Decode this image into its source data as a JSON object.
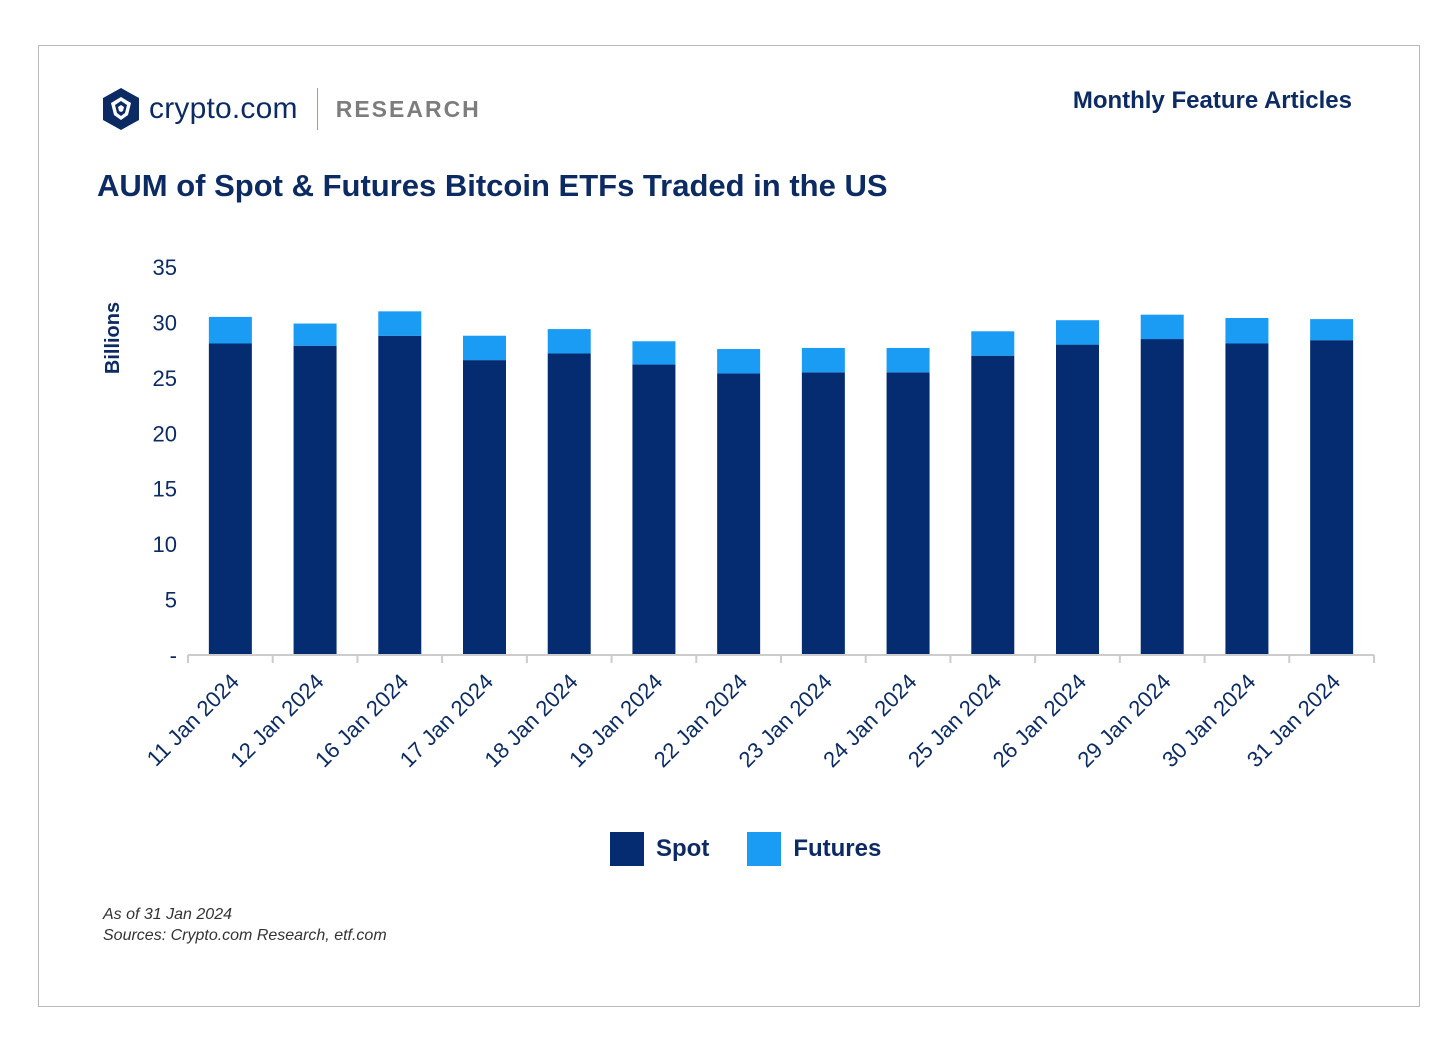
{
  "brand": {
    "name": "crypto.com",
    "section": "RESEARCH",
    "logo_icon": "crypto-com-lion-shield-icon"
  },
  "header": {
    "series": "Monthly Feature Articles"
  },
  "colors": {
    "spot": "#052c71",
    "futures": "#1a9cf5",
    "text": "#0d2b63",
    "axis": "#cccccc"
  },
  "chart_data": {
    "type": "bar",
    "stacked": true,
    "title": "AUM of Spot & Futures Bitcoin ETFs Traded in the US",
    "xlabel": "",
    "ylabel": "Billions",
    "ylim": [
      0,
      35
    ],
    "yticks": [
      0,
      5,
      10,
      15,
      20,
      25,
      30,
      35
    ],
    "ytick_labels": [
      "-",
      "5",
      "10",
      "15",
      "20",
      "25",
      "30",
      "35"
    ],
    "grid": false,
    "legend": "bottom",
    "categories": [
      "11 Jan 2024",
      "12 Jan 2024",
      "16 Jan 2024",
      "17 Jan 2024",
      "18 Jan 2024",
      "19 Jan 2024",
      "22 Jan 2024",
      "23 Jan 2024",
      "24 Jan 2024",
      "25 Jan 2024",
      "26 Jan 2024",
      "29 Jan 2024",
      "30 Jan 2024",
      "31 Jan 2024"
    ],
    "series": [
      {
        "name": "Spot",
        "values": [
          28.1,
          27.9,
          28.8,
          26.6,
          27.2,
          26.2,
          25.4,
          25.5,
          25.5,
          27.0,
          28.0,
          28.5,
          28.1,
          28.4
        ]
      },
      {
        "name": "Futures",
        "values": [
          2.4,
          2.0,
          2.2,
          2.2,
          2.2,
          2.1,
          2.2,
          2.2,
          2.2,
          2.2,
          2.2,
          2.2,
          2.3,
          1.9
        ]
      }
    ]
  },
  "footnotes": [
    "As of 31 Jan 2024",
    "Sources: Crypto.com Research, etf.com"
  ]
}
